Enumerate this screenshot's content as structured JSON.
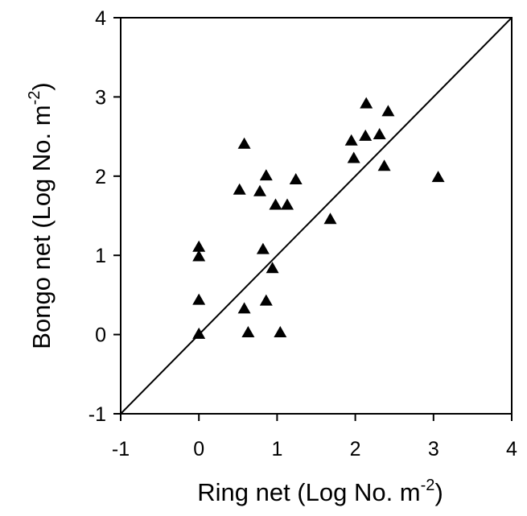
{
  "chart_data": {
    "type": "scatter",
    "title": "",
    "xlabel": "Ring net  (Log No. m",
    "xlabel_sup": "-2",
    "xlabel_end": ")",
    "ylabel": "Bongo net   (Log No. m",
    "ylabel_sup": "-2",
    "ylabel_end": ")",
    "xlim": [
      -1,
      4
    ],
    "ylim": [
      -1,
      4
    ],
    "xticks": [
      "-1",
      "0",
      "1",
      "2",
      "3",
      "4"
    ],
    "yticks": [
      "-1",
      "0",
      "1",
      "2",
      "3",
      "4"
    ],
    "reference_line": {
      "x": [
        -1,
        4
      ],
      "y": [
        -1,
        4
      ]
    },
    "marker": "triangle",
    "marker_color": "#000000",
    "grid": false,
    "series": [
      {
        "points": [
          {
            "x": 0.0,
            "y": 0.0
          },
          {
            "x": 0.0,
            "y": 0.43
          },
          {
            "x": 0.0,
            "y": 0.98
          },
          {
            "x": 0.0,
            "y": 1.1
          },
          {
            "x": 0.52,
            "y": 1.82
          },
          {
            "x": 0.58,
            "y": 2.4
          },
          {
            "x": 0.58,
            "y": 0.32
          },
          {
            "x": 0.63,
            "y": 0.02
          },
          {
            "x": 0.78,
            "y": 1.8
          },
          {
            "x": 0.82,
            "y": 1.07
          },
          {
            "x": 0.86,
            "y": 2.0
          },
          {
            "x": 0.86,
            "y": 0.42
          },
          {
            "x": 0.94,
            "y": 0.83
          },
          {
            "x": 0.98,
            "y": 1.63
          },
          {
            "x": 1.04,
            "y": 0.02
          },
          {
            "x": 1.13,
            "y": 1.63
          },
          {
            "x": 1.24,
            "y": 1.95
          },
          {
            "x": 1.68,
            "y": 1.45
          },
          {
            "x": 1.95,
            "y": 2.44
          },
          {
            "x": 1.98,
            "y": 2.22
          },
          {
            "x": 2.13,
            "y": 2.5
          },
          {
            "x": 2.14,
            "y": 2.91
          },
          {
            "x": 2.31,
            "y": 2.52
          },
          {
            "x": 2.37,
            "y": 2.12
          },
          {
            "x": 2.42,
            "y": 2.81
          },
          {
            "x": 3.06,
            "y": 1.98
          }
        ]
      }
    ]
  }
}
